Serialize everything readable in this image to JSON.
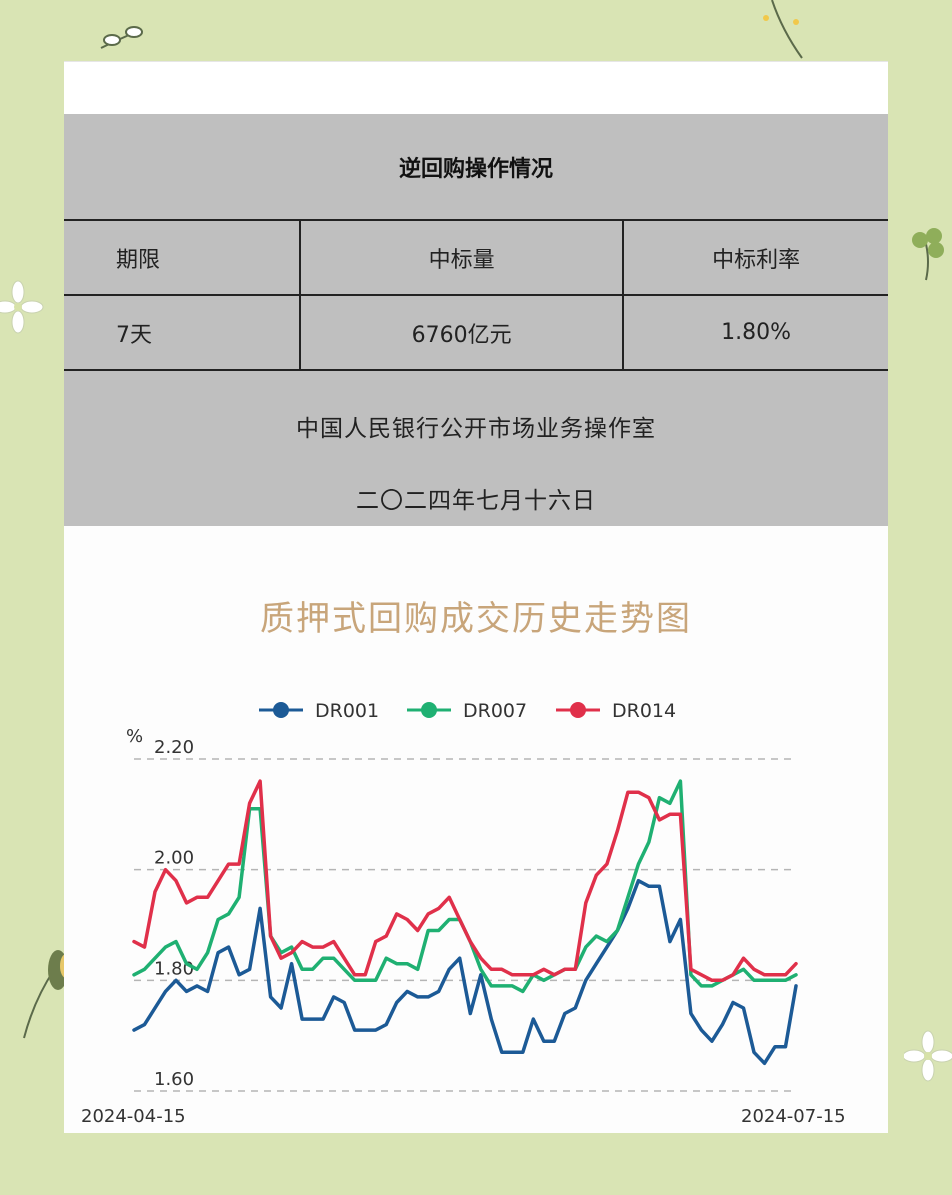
{
  "notice": {
    "title": "逆回购操作情况",
    "headers": [
      "期限",
      "中标量",
      "中标利率"
    ],
    "row": [
      "7天",
      "6760亿元",
      "1.80%"
    ],
    "issuer": "中国人民银行公开市场业务操作室",
    "date": "二〇二四年七月十六日"
  },
  "chart_data": {
    "type": "line",
    "title": "质押式回购成交历史走势图",
    "ylabel": "%",
    "ylim": [
      1.6,
      2.2
    ],
    "yticks": [
      "1.60",
      "1.80",
      "2.00",
      "2.20"
    ],
    "grid": true,
    "legend_placement": "top-center",
    "x_start": "2024-04-15",
    "x_end": "2024-07-15",
    "series": [
      {
        "name": "DR001",
        "color": "#1c5a96",
        "values": [
          1.71,
          1.72,
          1.75,
          1.78,
          1.8,
          1.78,
          1.79,
          1.78,
          1.85,
          1.86,
          1.81,
          1.82,
          1.93,
          1.77,
          1.75,
          1.83,
          1.73,
          1.73,
          1.73,
          1.77,
          1.76,
          1.71,
          1.71,
          1.71,
          1.72,
          1.76,
          1.78,
          1.77,
          1.77,
          1.78,
          1.82,
          1.84,
          1.74,
          1.81,
          1.73,
          1.67,
          1.67,
          1.67,
          1.73,
          1.69,
          1.69,
          1.74,
          1.75,
          1.8,
          1.83,
          1.86,
          1.89,
          1.93,
          1.98,
          1.97,
          1.97,
          1.87,
          1.91,
          1.74,
          1.71,
          1.69,
          1.72,
          1.76,
          1.75,
          1.67,
          1.65,
          1.68,
          1.68,
          1.79
        ]
      },
      {
        "name": "DR007",
        "color": "#1fb072",
        "values": [
          1.81,
          1.82,
          1.84,
          1.86,
          1.87,
          1.83,
          1.82,
          1.85,
          1.91,
          1.92,
          1.95,
          2.11,
          2.11,
          1.88,
          1.85,
          1.86,
          1.82,
          1.82,
          1.84,
          1.84,
          1.82,
          1.8,
          1.8,
          1.8,
          1.84,
          1.83,
          1.83,
          1.82,
          1.89,
          1.89,
          1.91,
          1.91,
          1.87,
          1.82,
          1.79,
          1.79,
          1.79,
          1.78,
          1.81,
          1.8,
          1.81,
          1.82,
          1.82,
          1.86,
          1.88,
          1.87,
          1.89,
          1.95,
          2.01,
          2.05,
          2.13,
          2.12,
          2.16,
          1.81,
          1.79,
          1.79,
          1.8,
          1.81,
          1.82,
          1.8,
          1.8,
          1.8,
          1.8,
          1.81
        ]
      },
      {
        "name": "DR014",
        "color": "#e0304a",
        "values": [
          1.87,
          1.86,
          1.96,
          2.0,
          1.98,
          1.94,
          1.95,
          1.95,
          1.98,
          2.01,
          2.01,
          2.12,
          2.16,
          1.88,
          1.84,
          1.85,
          1.87,
          1.86,
          1.86,
          1.87,
          1.84,
          1.81,
          1.81,
          1.87,
          1.88,
          1.92,
          1.91,
          1.89,
          1.92,
          1.93,
          1.95,
          1.91,
          1.87,
          1.84,
          1.82,
          1.82,
          1.81,
          1.81,
          1.81,
          1.82,
          1.81,
          1.82,
          1.82,
          1.94,
          1.99,
          2.01,
          2.07,
          2.14,
          2.14,
          2.13,
          2.09,
          2.1,
          2.1,
          1.82,
          1.81,
          1.8,
          1.8,
          1.81,
          1.84,
          1.82,
          1.81,
          1.81,
          1.81,
          1.83
        ]
      }
    ]
  }
}
